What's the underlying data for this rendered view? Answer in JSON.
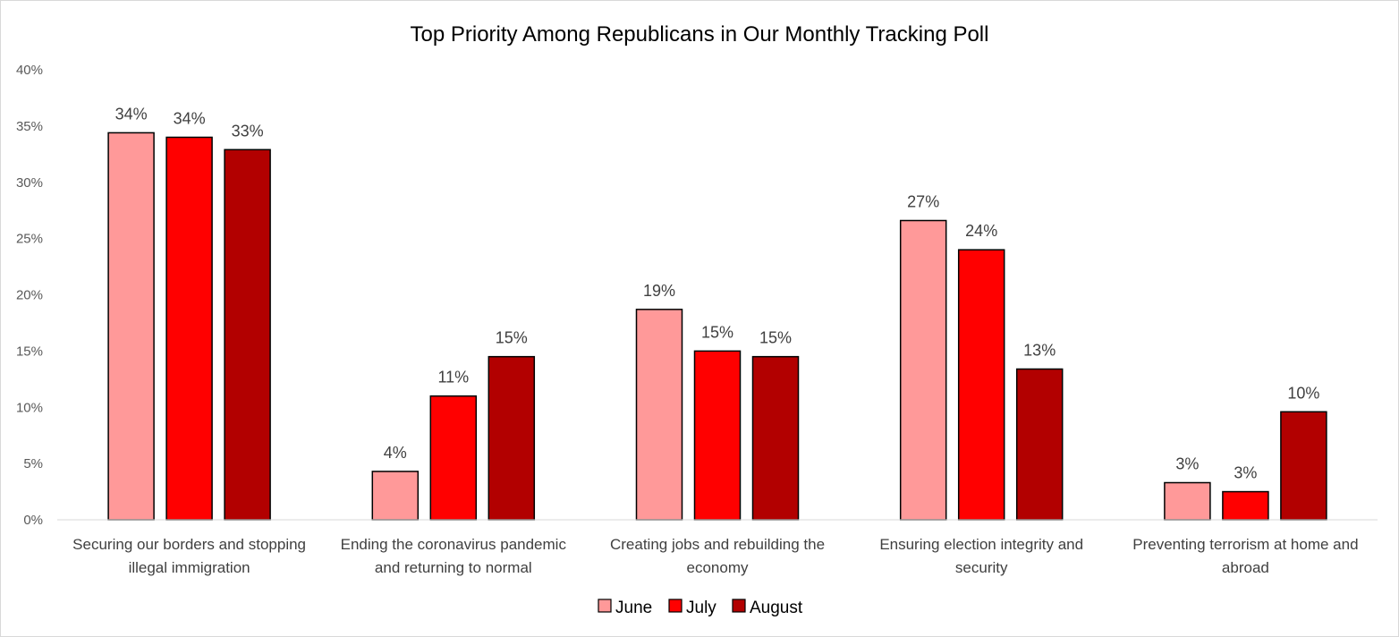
{
  "chart_data": {
    "type": "bar",
    "title": "Top Priority Among Republicans in Our Monthly Tracking Poll",
    "xlabel": "",
    "ylabel": "",
    "ylim": [
      0,
      40
    ],
    "y_ticks": [
      0,
      5,
      10,
      15,
      20,
      25,
      30,
      35,
      40
    ],
    "y_tick_labels": [
      "0%",
      "5%",
      "10%",
      "15%",
      "20%",
      "25%",
      "30%",
      "35%",
      "40%"
    ],
    "grid": false,
    "legend_position": "bottom",
    "categories": [
      [
        "Securing our borders and stopping",
        "illegal immigration"
      ],
      [
        "Ending the coronavirus pandemic",
        "and returning to normal"
      ],
      [
        "Creating jobs and rebuilding the",
        "economy"
      ],
      [
        "Ensuring election integrity and",
        "security"
      ],
      [
        "Preventing terrorism at home and",
        "abroad"
      ]
    ],
    "series": [
      {
        "name": "June",
        "color": "#ff9999",
        "values": [
          34.4,
          4.3,
          18.7,
          26.6,
          3.3
        ],
        "labels": [
          "34%",
          "4%",
          "19%",
          "27%",
          "3%"
        ]
      },
      {
        "name": "July",
        "color": "#ff0000",
        "values": [
          34.0,
          11.0,
          15.0,
          24.0,
          2.5
        ],
        "labels": [
          "34%",
          "11%",
          "15%",
          "24%",
          "3%"
        ]
      },
      {
        "name": "August",
        "color": "#b20000",
        "values": [
          32.9,
          14.5,
          14.5,
          13.4,
          9.6
        ],
        "labels": [
          "33%",
          "15%",
          "15%",
          "13%",
          "10%"
        ]
      }
    ]
  }
}
